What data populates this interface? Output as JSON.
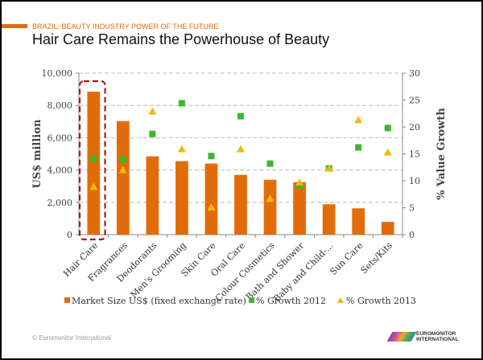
{
  "header": {
    "kicker": "BRAZIL: BEAUTY INDUSTRY POWER OF THE FUTURE",
    "title": "Hair Care Remains the Powerhouse of Beauty"
  },
  "colors": {
    "accent": "#e36c0a",
    "bar": "#e36c0a",
    "growth2012": "#3bb82c",
    "growth2013": "#f2b90c",
    "highlight": "#a81c1c"
  },
  "chart_data": {
    "type": "bar",
    "title": "Hair Care Remains the Powerhouse of Beauty",
    "categories": [
      "Hair Care",
      "Fragrances",
      "Deodorants",
      "Men's Grooming",
      "Skin Care",
      "Oral Care",
      "Colour Cosmetics",
      "Bath and Shower",
      "Baby and Child-...",
      "Sun Care",
      "Sets/Kits"
    ],
    "series": [
      {
        "name": "Market Size US$ (fixed exchange rate)",
        "type": "bar",
        "axis": "left",
        "values": [
          8850,
          7030,
          4850,
          4550,
          4400,
          3700,
          3400,
          3250,
          1880,
          1630,
          790
        ]
      },
      {
        "name": "% Growth 2012",
        "type": "scatter",
        "marker": "square",
        "axis": "right",
        "values": [
          14.1,
          14.0,
          18.7,
          24.4,
          14.6,
          22.0,
          13.2,
          9.1,
          12.3,
          16.2,
          19.8
        ]
      },
      {
        "name": "% Growth 2013",
        "type": "scatter",
        "marker": "triangle",
        "axis": "right",
        "values": [
          8.9,
          12.0,
          22.9,
          15.9,
          5.1,
          15.9,
          6.7,
          9.7,
          12.3,
          21.3,
          15.3
        ]
      }
    ],
    "ylabel": "US$ million",
    "y2label": "% Value Growth",
    "ylim": [
      0,
      10000
    ],
    "y2lim": [
      0,
      30
    ],
    "yticks": [
      "0",
      "2,000",
      "4,000",
      "6,000",
      "8,000",
      "10,000"
    ],
    "y2ticks": [
      "0",
      "5",
      "10",
      "15",
      "20",
      "25",
      "30"
    ],
    "grid": true,
    "legend": "bottom",
    "highlighted_category": "Hair Care"
  },
  "footer": {
    "copyright": "© Euromonitor International",
    "logo_line1": "EUROMONITOR",
    "logo_line2": "INTERNATIONAL"
  }
}
